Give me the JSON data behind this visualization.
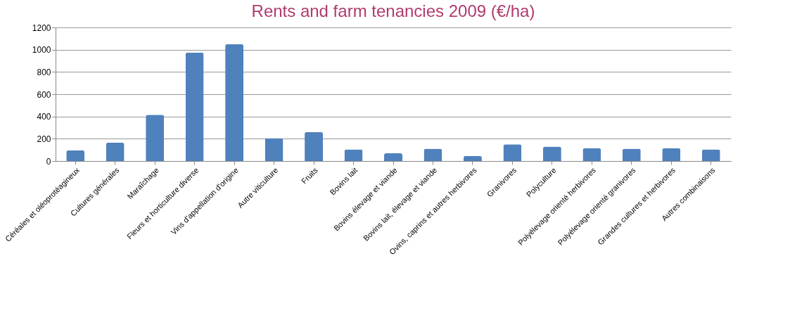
{
  "chart_data": {
    "type": "bar",
    "title": "Rents and farm tenancies 2009 (€/ha)",
    "categories": [
      "Céréales et oléoprotéagineux",
      "Cultures générales",
      "Maraîchage",
      "Fleurs et horticulture diverse",
      "Vins d'appellation d'origine",
      "Autre viticulture",
      "Fruits",
      "Bovins lait",
      "Bovins élevage et viande",
      "Bovins lait, élevage et viande",
      "Ovins, caprins et autres herbivores",
      "Granivores",
      "Polyculture",
      "Polyélevage orienté herbivores",
      "Polyélevage orienté granivores",
      "Grandes cultures et herbivores",
      "Autres combinaisons"
    ],
    "values": [
      95,
      165,
      415,
      975,
      1050,
      205,
      260,
      105,
      70,
      110,
      45,
      150,
      130,
      115,
      110,
      115,
      105
    ],
    "color": "#4f81bd",
    "ylim": [
      0,
      1200
    ],
    "yticks": [
      0,
      200,
      400,
      600,
      800,
      1000,
      1200
    ],
    "grid": "y"
  }
}
